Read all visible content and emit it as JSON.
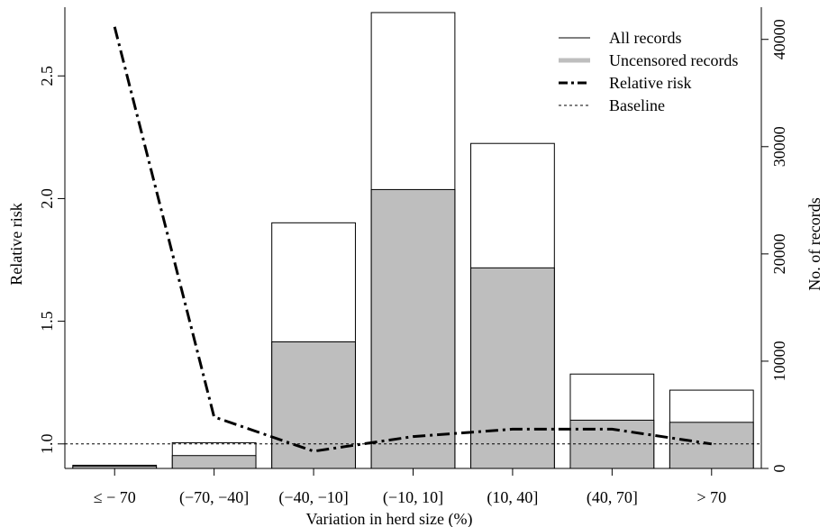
{
  "chart_data": {
    "type": "bar",
    "title": "",
    "xlabel": "Variation in herd size (%)",
    "ylabel_left": "Relative risk",
    "ylabel_right": "No. of records",
    "categories": [
      "≤ − 70",
      "(−70, −40]",
      "(−40, −10]",
      "(−10, 10]",
      "(10, 40]",
      "(40, 70]",
      "> 70"
    ],
    "bar_series": [
      {
        "name": "All records",
        "axis": "right",
        "fill": "#ffffff",
        "values": [
          300,
          2400,
          22900,
          42500,
          30300,
          8800,
          7300
        ]
      },
      {
        "name": "Uncensored records",
        "axis": "right",
        "fill": "#bebebe",
        "values": [
          200,
          1200,
          11800,
          26000,
          18700,
          4500,
          4300
        ]
      }
    ],
    "line_series": [
      {
        "name": "Relative risk",
        "axis": "left",
        "style": "dash-dot",
        "values": [
          2.7,
          1.11,
          0.97,
          1.03,
          1.06,
          1.06,
          1.0
        ]
      }
    ],
    "baseline": {
      "name": "Baseline",
      "value": 1.0,
      "style": "dotted"
    },
    "left_axis": {
      "ylim": [
        0.9,
        2.78
      ],
      "ticks": [
        1.0,
        1.5,
        2.0,
        2.5
      ],
      "tick_labels": [
        "1.0",
        "1.5",
        "2.0",
        "2.5"
      ]
    },
    "right_axis": {
      "ylim": [
        0,
        43000
      ],
      "ticks": [
        0,
        10000,
        20000,
        30000,
        40000
      ],
      "tick_labels": [
        "0",
        "10000",
        "20000",
        "30000",
        "40000"
      ]
    },
    "legend": {
      "position": "top-right",
      "entries": [
        {
          "label": "All records",
          "style": "thin-solid"
        },
        {
          "label": "Uncensored records",
          "style": "thick-gray"
        },
        {
          "label": "Relative risk",
          "style": "dash-dot"
        },
        {
          "label": "Baseline",
          "style": "dotted"
        }
      ]
    },
    "grid": false
  }
}
